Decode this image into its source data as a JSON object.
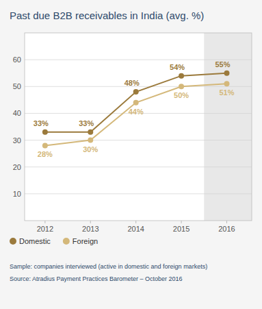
{
  "chart_data": {
    "type": "line",
    "title": "Past due B2B receivables in India (avg. %)",
    "x": [
      2012,
      2013,
      2014,
      2015,
      2016
    ],
    "series": [
      {
        "name": "Domestic",
        "color": "#9B7A3C",
        "marker": "circle",
        "line_style": "solid",
        "values": [
          33,
          33,
          48,
          54,
          55
        ],
        "value_labels": [
          "33%",
          "33%",
          "48%",
          "54%",
          "55%"
        ]
      },
      {
        "name": "Foreign",
        "color": "#D4B87A",
        "marker": "circle",
        "line_style": "solid",
        "values": [
          28,
          30,
          44,
          50,
          51
        ],
        "value_labels": [
          "28%",
          "30%",
          "44%",
          "50%",
          "51%"
        ]
      }
    ],
    "xlim": [
      2011.55,
      2016.55
    ],
    "xticks": [
      2012,
      2013,
      2014,
      2015,
      2016
    ],
    "ylim": [
      0,
      70
    ],
    "yticks": [
      10,
      20,
      30,
      40,
      50,
      60
    ],
    "grid": true,
    "legend": "bottom",
    "data_labels": true,
    "annotations": [
      "Sample: companies interviewed (active in domestic and foreign markets)",
      "Source: Atradius Payment Practices Barometer – October 2016"
    ]
  }
}
